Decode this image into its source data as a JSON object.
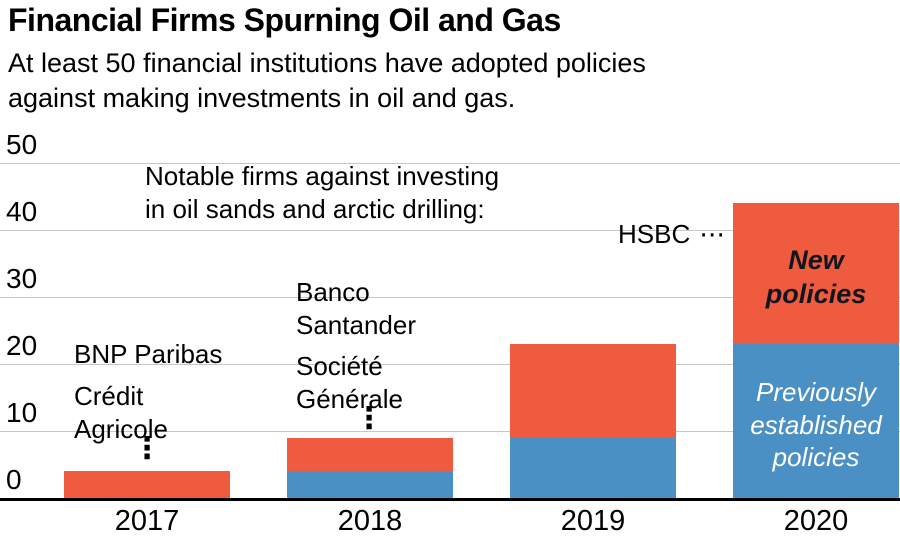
{
  "header": {
    "title": "Financial Firms Spurning Oil and Gas",
    "subtitle_line1": "At least 50 financial institutions have adopted policies",
    "subtitle_line2": "against making investments in oil and gas."
  },
  "annotations": {
    "note_line1": "Notable firms against investing",
    "note_line2": "in oil sands and arctic drilling:",
    "firm_2017_a": "BNP Paribas",
    "firm_2017_b": "Crédit Agricole",
    "firm_2018_a": "Banco Santander",
    "firm_2018_b": "Société Générale",
    "firm_2020": "HSBC",
    "vertical_dots": "⋮",
    "horizontal_dots": "⋯",
    "label_new_policies": "New policies",
    "label_previous_policies": "Previously established policies"
  },
  "chart_data": {
    "type": "bar",
    "stacked": true,
    "title": "Financial Firms Spurning Oil and Gas",
    "categories": [
      "2017",
      "2018",
      "2019",
      "2020"
    ],
    "series": [
      {
        "name": "Previously established policies",
        "color": "#4a90c4",
        "values": [
          0,
          4,
          9,
          23
        ]
      },
      {
        "name": "New policies",
        "color": "#ee5b3f",
        "values": [
          4,
          5,
          14,
          21
        ]
      }
    ],
    "totals": [
      4,
      9,
      23,
      44
    ],
    "xlabel": "",
    "ylabel": "",
    "ylim": [
      0,
      50
    ],
    "yticks": [
      0,
      10,
      20,
      30,
      40,
      50
    ],
    "grid": "horizontal",
    "legend_position": "inside-last-bar",
    "baseline_color": "#000000",
    "gridline_color": "#c6c6c6"
  }
}
